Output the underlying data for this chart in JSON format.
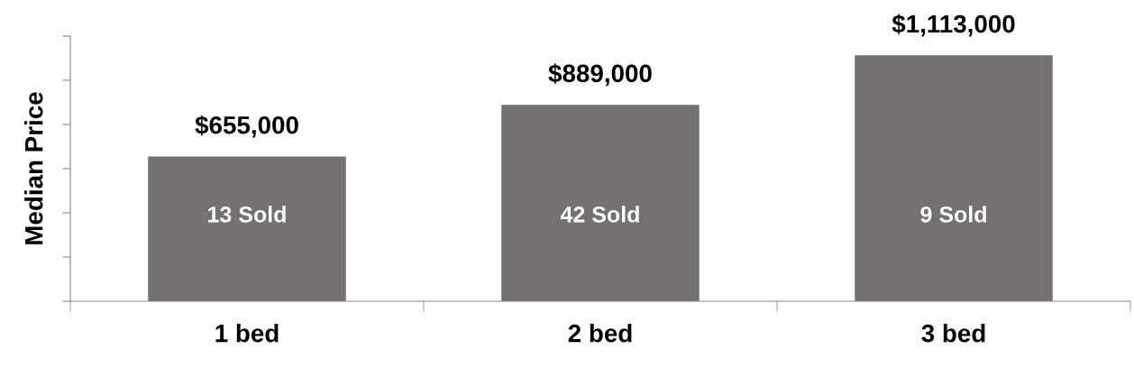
{
  "chart_data": {
    "type": "bar",
    "ylabel": "Median Price",
    "categories": [
      "1 bed",
      "2 bed",
      "3 bed"
    ],
    "values": [
      655000,
      889000,
      1113000
    ],
    "value_labels": [
      "$655,000",
      "$889,000",
      "$1,113,000"
    ],
    "color": "#757170",
    "ylim": [
      0,
      1200000
    ],
    "yticks": [
      {
        "value": 0,
        "label": null
      },
      {
        "value": 200000,
        "label": null
      },
      {
        "value": 400000,
        "label": null
      },
      {
        "value": 600000,
        "label": null
      },
      {
        "value": 800000,
        "label": null
      },
      {
        "value": 1000000,
        "label": null
      },
      {
        "value": 1200000,
        "label": null
      }
    ],
    "tick_labels": "x",
    "grid": false,
    "annotations": [
      "13 Sold",
      "42 Sold",
      "9 Sold"
    ]
  }
}
